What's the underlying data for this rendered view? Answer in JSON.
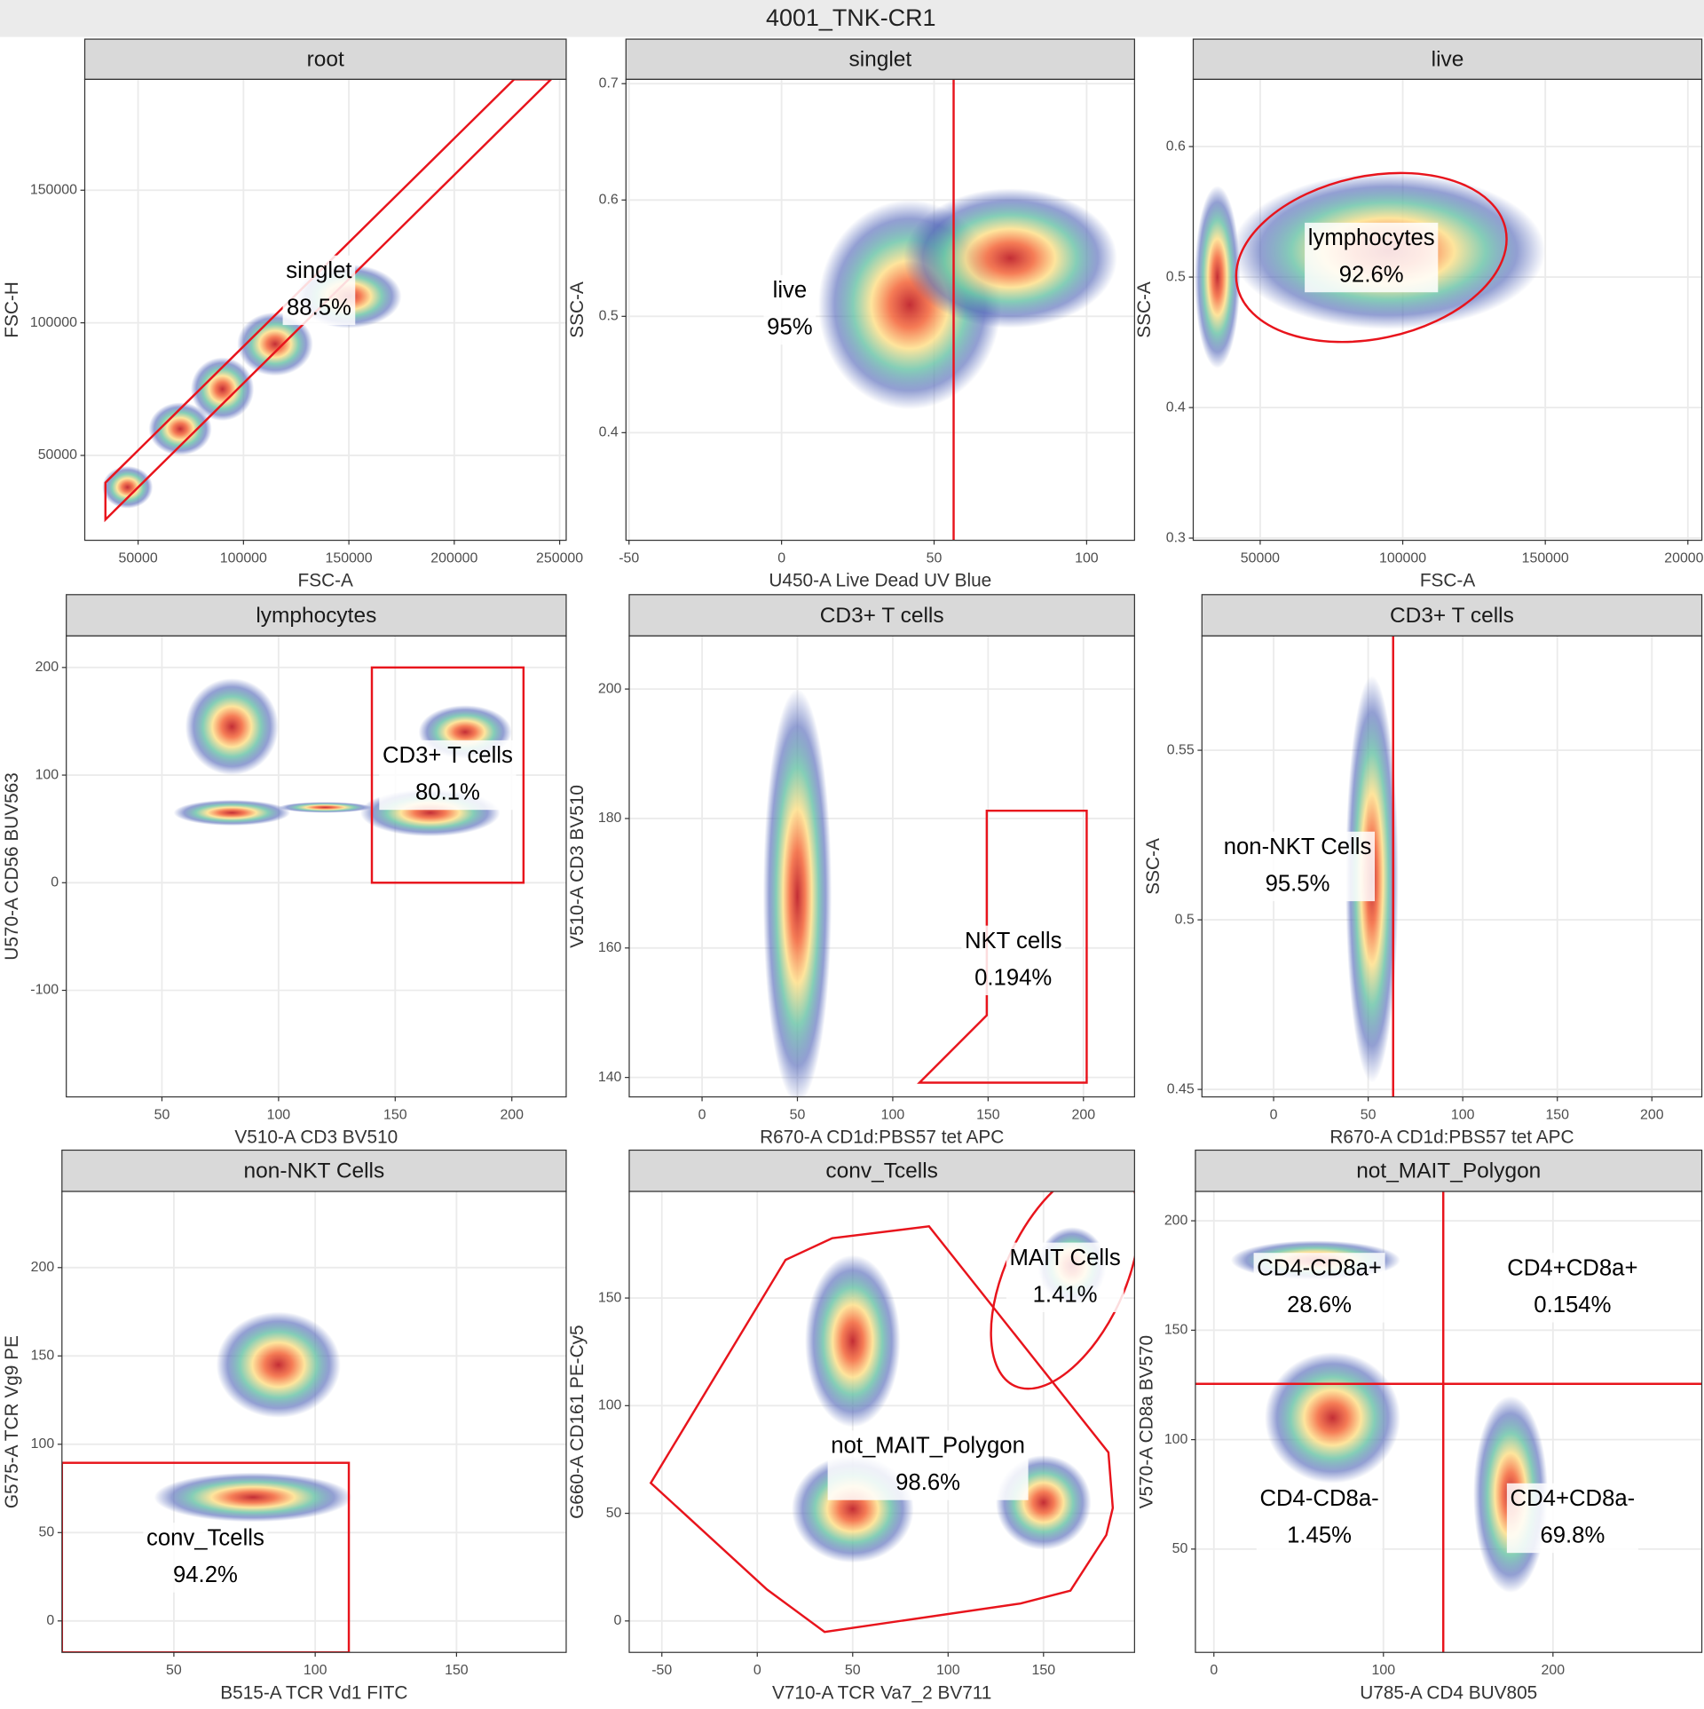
{
  "suptitle": "4001_TNK-CR1",
  "chart_data": [
    {
      "type": "scatter",
      "title": "root",
      "x_label": "FSC-A",
      "y_label": "FSC-H",
      "xlim": [
        24700,
        253100
      ],
      "ylim": [
        18000,
        191800
      ],
      "xticks": [
        50000,
        100000,
        150000,
        200000,
        250000
      ],
      "yticks": [
        50000,
        100000,
        150000
      ],
      "grid": true,
      "gate_color": "#e8141c",
      "clusters": [
        {
          "x": 45000,
          "y": 38000,
          "rx": 12000,
          "ry": 8000
        },
        {
          "x": 70000,
          "y": 60000,
          "rx": 15000,
          "ry": 10000
        },
        {
          "x": 90000,
          "y": 75000,
          "rx": 15000,
          "ry": 12000
        },
        {
          "x": 115000,
          "y": 92000,
          "rx": 18000,
          "ry": 12000
        },
        {
          "x": 150000,
          "y": 110000,
          "rx": 25000,
          "ry": 12000
        }
      ],
      "gates": [
        {
          "type": "polygon",
          "name": "singlet",
          "value": 88.5,
          "value_label": "88.5%",
          "x": [
            34500,
            228400,
            245900,
            34500
          ],
          "y": [
            39750,
            191800,
            191800,
            25800
          ]
        }
      ]
    },
    {
      "type": "scatter",
      "title": "singlet",
      "x_label": "U450-A Live Dead UV Blue",
      "y_label": "SSC-A",
      "xlim": [
        -51,
        115.7
      ],
      "ylim": [
        0.3075,
        0.7037
      ],
      "xticks": [
        -50,
        0,
        50,
        100
      ],
      "yticks": [
        0.4,
        0.5,
        0.6,
        0.7
      ],
      "grid": true,
      "gate_color": "#e8141c",
      "clusters": [
        {
          "x": 42,
          "y": 0.51,
          "rx": 30,
          "ry": 0.09
        },
        {
          "x": 75,
          "y": 0.55,
          "rx": 35,
          "ry": 0.06
        }
      ],
      "gates": [
        {
          "type": "vline",
          "name": "live",
          "value": 95,
          "value_label": "95%",
          "x": 56.4
        }
      ]
    },
    {
      "type": "scatter",
      "title": "live",
      "x_label": "FSC-A",
      "y_label": "SSC-A",
      "xlim": [
        26520,
        204900
      ],
      "ylim": [
        0.2983,
        0.6515
      ],
      "xticks": [
        50000,
        100000,
        150000,
        200000
      ],
      "yticks": [
        0.3,
        0.4,
        0.5,
        0.6
      ],
      "grid": true,
      "gate_color": "#e8141c",
      "clusters": [
        {
          "x": 95000,
          "y": 0.52,
          "rx": 55000,
          "ry": 0.06
        },
        {
          "x": 35000,
          "y": 0.5,
          "rx": 8000,
          "ry": 0.07
        }
      ],
      "gates": [
        {
          "type": "ellipse",
          "name": "lymphocytes",
          "value": 92.6,
          "value_label": "92.6%",
          "cx": 89000,
          "cy": 0.515,
          "rx": 48100,
          "ry": 0.0623,
          "angle": -12
        }
      ]
    },
    {
      "type": "scatter",
      "title": "lymphocytes",
      "x_label": "V510-A CD3 BV510",
      "y_label": "U570-A CD56 BUV563",
      "xlim": [
        9,
        223.3
      ],
      "ylim": [
        -199,
        229.3
      ],
      "xticks": [
        50,
        100,
        150,
        200
      ],
      "yticks": [
        -100,
        0,
        100,
        200
      ],
      "grid": true,
      "gate_color": "#e8141c",
      "clusters": [
        {
          "x": 80,
          "y": 145,
          "rx": 20,
          "ry": 45
        },
        {
          "x": 80,
          "y": 65,
          "rx": 25,
          "ry": 12
        },
        {
          "x": 165,
          "y": 65,
          "rx": 30,
          "ry": 22
        },
        {
          "x": 180,
          "y": 140,
          "rx": 20,
          "ry": 25
        },
        {
          "x": 120,
          "y": 70,
          "rx": 20,
          "ry": 5
        }
      ],
      "gates": [
        {
          "type": "rect",
          "name": "CD3+ T cells",
          "value": 80.1,
          "value_label": "80.1%",
          "xmin": 140,
          "xmax": 205,
          "ymin": 0,
          "ymax": 200
        }
      ]
    },
    {
      "type": "scatter",
      "title": "CD3+ T cells",
      "x_label": "R670-A CD1d:PBS57 tet APC",
      "y_label": "V510-A CD3 BV510",
      "xlim": [
        -38.2,
        226.8
      ],
      "ylim": [
        137,
        208.2
      ],
      "xticks": [
        0,
        50,
        100,
        150,
        200
      ],
      "yticks": [
        140,
        160,
        180,
        200
      ],
      "grid": true,
      "gate_color": "#e8141c",
      "clusters": [
        {
          "x": 50,
          "y": 168,
          "rx": 18,
          "ry": 32
        }
      ],
      "gates": [
        {
          "type": "polygon",
          "name": "NKT cells",
          "value": 0.194,
          "value_label": "0.194%",
          "x": [
            149.3,
            201.7,
            201.7,
            114,
            149.3
          ],
          "y": [
            181.2,
            181.2,
            139.2,
            139.2,
            149.6
          ]
        }
      ]
    },
    {
      "type": "scatter",
      "title": "CD3+ T cells",
      "x_label": "R670-A CD1d:PBS57 tet APC",
      "y_label": "SSC-A",
      "xlim": [
        -37.9,
        226.4
      ],
      "ylim": [
        0.4478,
        0.5837
      ],
      "xticks": [
        0,
        50,
        100,
        150,
        200
      ],
      "yticks": [
        0.45,
        0.5,
        0.55
      ],
      "grid": true,
      "gate_color": "#e8141c",
      "clusters": [
        {
          "x": 52,
          "y": 0.512,
          "rx": 14,
          "ry": 0.06
        }
      ],
      "gates": [
        {
          "type": "vline",
          "name": "non-NKT Cells",
          "value": 95.5,
          "value_label": "95.5%",
          "x": 63.2
        }
      ]
    },
    {
      "type": "scatter",
      "title": "non-NKT Cells",
      "x_label": "B515-A TCR Vd1 FITC",
      "y_label": "G575-A TCR Vg9 PE",
      "xlim": [
        10.4,
        188.8
      ],
      "ylim": [
        -17.8,
        243.1
      ],
      "xticks": [
        50,
        100,
        150
      ],
      "yticks": [
        0,
        50,
        100,
        150,
        200
      ],
      "grid": true,
      "gate_color": "#e8141c",
      "clusters": [
        {
          "x": 78,
          "y": 70,
          "rx": 35,
          "ry": 14
        },
        {
          "x": 87,
          "y": 145,
          "rx": 22,
          "ry": 30
        }
      ],
      "gates": [
        {
          "type": "rect",
          "name": "conv_Tcells",
          "value": 94.2,
          "value_label": "94.2%",
          "xmin": 10.4,
          "xmax": 111.9,
          "ymin": -17.8,
          "ymax": 89.5
        }
      ]
    },
    {
      "type": "scatter",
      "title": "conv_Tcells",
      "x_label": "V710-A TCR Va7_2 BV711",
      "y_label": "G660-A CD161 PE-Cy5",
      "xlim": [
        -67.1,
        197.7
      ],
      "ylim": [
        -14.6,
        199.5
      ],
      "xticks": [
        -50,
        0,
        50,
        100,
        150
      ],
      "yticks": [
        0,
        50,
        100,
        150
      ],
      "grid": true,
      "gate_color": "#e8141c",
      "clusters": [
        {
          "x": 50,
          "y": 130,
          "rx": 25,
          "ry": 40
        },
        {
          "x": 50,
          "y": 52,
          "rx": 32,
          "ry": 25
        },
        {
          "x": 150,
          "y": 55,
          "rx": 25,
          "ry": 22
        },
        {
          "x": 165,
          "y": 165,
          "rx": 18,
          "ry": 18
        }
      ],
      "gates": [
        {
          "type": "ellipse",
          "name": "MAIT Cells",
          "value": 1.41,
          "value_label": "1.41%",
          "cx": 161.3,
          "cy": 159.6,
          "rx": 31.3,
          "ry": 55.6,
          "angle": 25
        },
        {
          "type": "polygon",
          "name": "not_MAIT_Polygon",
          "value": 98.6,
          "value_label": "98.6%",
          "x": [
            14.8,
            39.3,
            90,
            184,
            186.3,
            182.9,
            164.1,
            137.9,
            35.3,
            5.1,
            -55.8
          ],
          "y": [
            167.7,
            177.8,
            183.3,
            78.3,
            52.5,
            39.9,
            14.1,
            8.1,
            -5.1,
            14.6,
            64.1
          ]
        }
      ]
    },
    {
      "type": "scatter",
      "title": "not_MAIT_Polygon",
      "x_label": "U785-A CD4 BUV805",
      "y_label": "V570-A CD8a BV570",
      "xlim": [
        -10.9,
        287.8
      ],
      "ylim": [
        2.8,
        213.4
      ],
      "xticks": [
        0,
        100,
        200
      ],
      "yticks": [
        50,
        100,
        150,
        200
      ],
      "grid": true,
      "gate_color": "#e8141c",
      "clusters": [
        {
          "x": 60,
          "y": 182,
          "rx": 50,
          "ry": 9
        },
        {
          "x": 175,
          "y": 75,
          "rx": 22,
          "ry": 45
        },
        {
          "x": 70,
          "y": 110,
          "rx": 40,
          "ry": 30
        }
      ],
      "gates": [
        {
          "type": "quadrant",
          "x": 135.3,
          "y": 125.5,
          "quadrants": [
            {
              "name": "CD4-CD8a+",
              "value": 28.6,
              "value_label": "28.6%"
            },
            {
              "name": "CD4+CD8a+",
              "value": 0.154,
              "value_label": "0.154%"
            },
            {
              "name": "CD4-CD8a-",
              "value": 1.45,
              "value_label": "1.45%"
            },
            {
              "name": "CD4+CD8a-",
              "value": 69.8,
              "value_label": "69.8%"
            }
          ]
        }
      ]
    }
  ]
}
